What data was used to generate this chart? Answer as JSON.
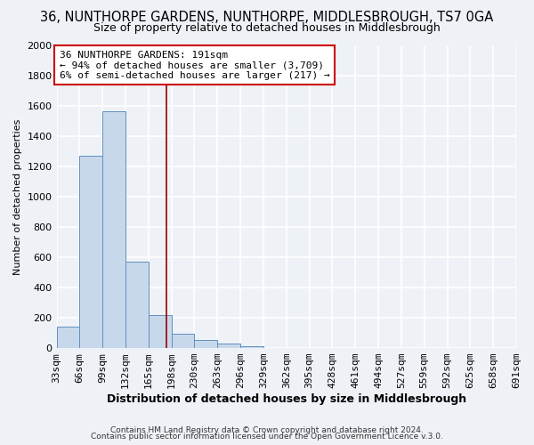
{
  "title": "36, NUNTHORPE GARDENS, NUNTHORPE, MIDDLESBROUGH, TS7 0GA",
  "subtitle": "Size of property relative to detached houses in Middlesbrough",
  "xlabel": "Distribution of detached houses by size in Middlesbrough",
  "ylabel": "Number of detached properties",
  "footer_line1": "Contains HM Land Registry data © Crown copyright and database right 2024.",
  "footer_line2": "Contains public sector information licensed under the Open Government Licence v.3.0.",
  "bar_left_edges": [
    33,
    66,
    99,
    132,
    165,
    198,
    231,
    264,
    297,
    330,
    363,
    396,
    429,
    462,
    495,
    528,
    561,
    594,
    627,
    660
  ],
  "bar_right_edges": [
    66,
    99,
    132,
    165,
    198,
    231,
    264,
    297,
    330,
    363,
    396,
    429,
    462,
    495,
    528,
    561,
    594,
    627,
    660,
    693
  ],
  "bar_heights": [
    140,
    1270,
    1570,
    570,
    220,
    95,
    55,
    30,
    10,
    0,
    0,
    0,
    0,
    0,
    0,
    0,
    0,
    0,
    0,
    0
  ],
  "bar_color": "#c8d8eb",
  "bar_edge_color": "#6090c0",
  "reference_line_x": 191,
  "reference_line_color": "#990000",
  "annotation_line1": "36 NUNTHORPE GARDENS: 191sqm",
  "annotation_line2": "← 94% of detached houses are smaller (3,709)",
  "annotation_line3": "6% of semi-detached houses are larger (217) →",
  "ylim": [
    0,
    2000
  ],
  "yticks": [
    0,
    200,
    400,
    600,
    800,
    1000,
    1200,
    1400,
    1600,
    1800,
    2000
  ],
  "xtick_positions": [
    33,
    66,
    99,
    132,
    165,
    198,
    231,
    264,
    297,
    330,
    363,
    396,
    429,
    462,
    495,
    528,
    561,
    594,
    627,
    660,
    693
  ],
  "xtick_labels": [
    "33sqm",
    "66sqm",
    "99sqm",
    "132sqm",
    "165sqm",
    "198sqm",
    "230sqm",
    "263sqm",
    "296sqm",
    "329sqm",
    "362sqm",
    "395sqm",
    "428sqm",
    "461sqm",
    "494sqm",
    "527sqm",
    "559sqm",
    "592sqm",
    "625sqm",
    "658sqm",
    "691sqm"
  ],
  "bg_color": "#eef2f7",
  "grid_color": "#ffffff",
  "title_fontsize": 10.5,
  "subtitle_fontsize": 9,
  "annotation_fontsize": 8,
  "ylabel_fontsize": 8,
  "xlabel_fontsize": 9,
  "footer_fontsize": 6.5
}
